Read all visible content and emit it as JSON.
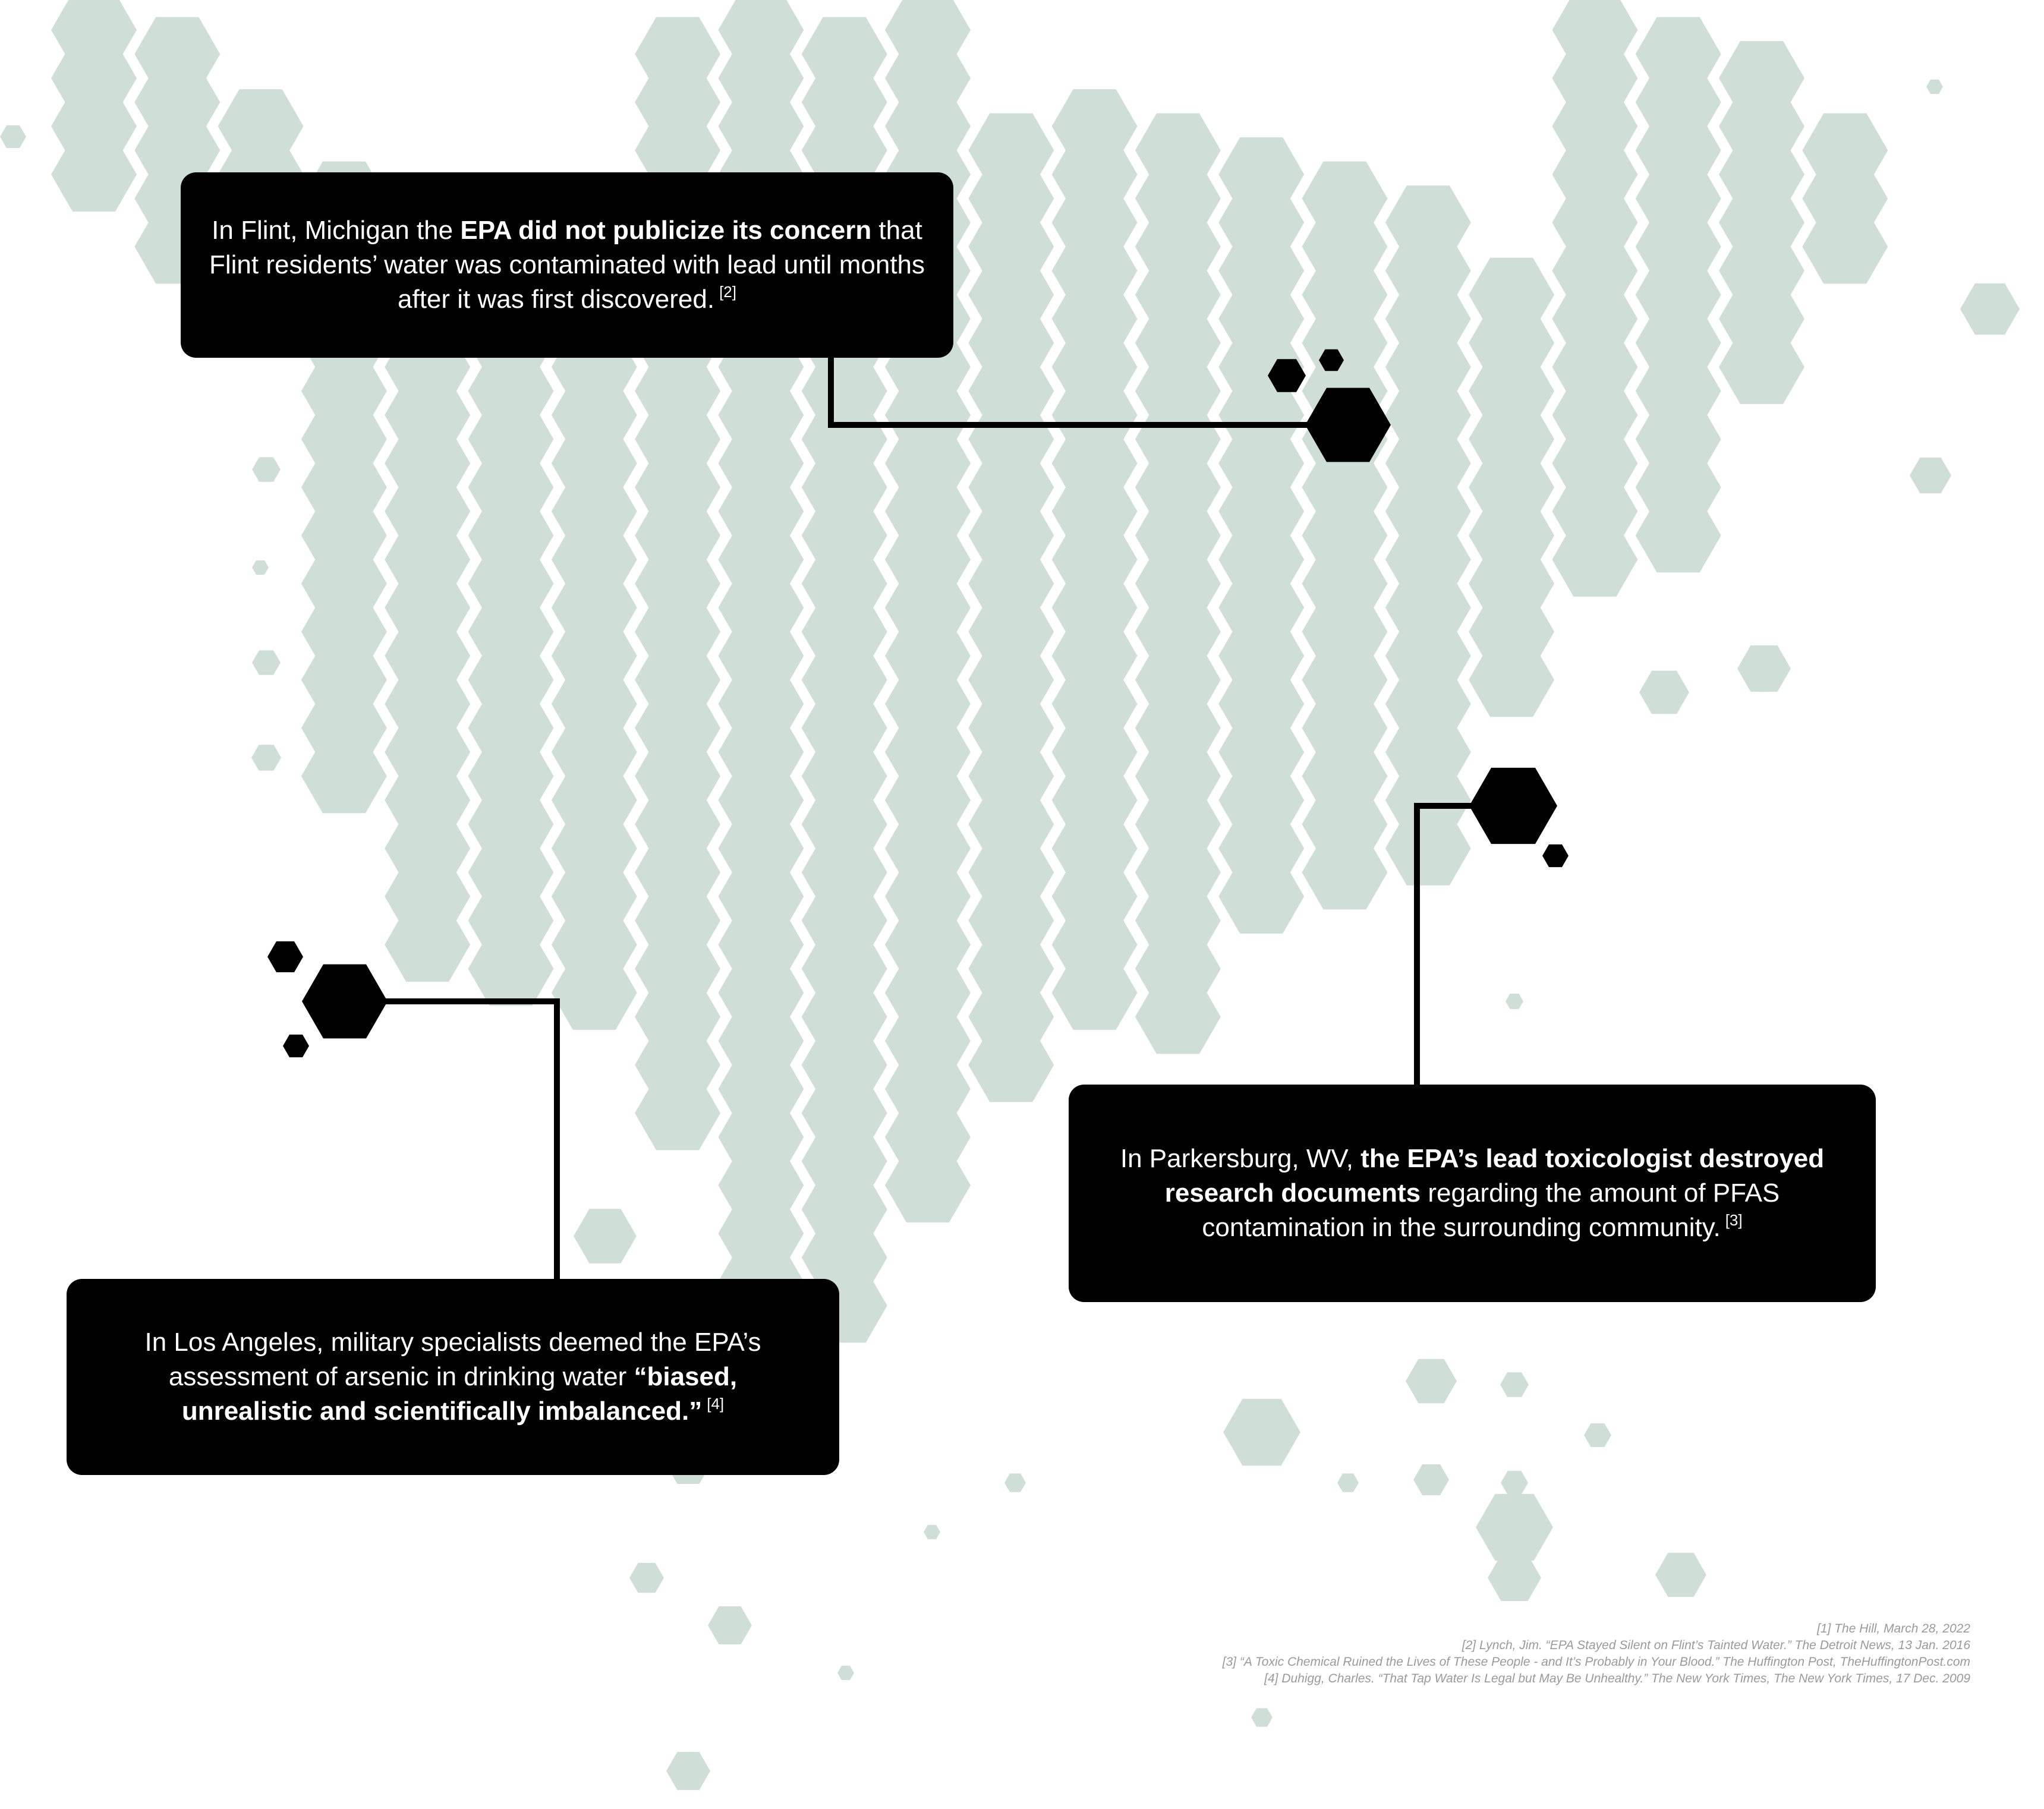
{
  "callouts": {
    "flint": {
      "pre": "In Flint, Michigan the ",
      "bold": "EPA did not publicize its concern",
      "post": " that Flint residents’ water was contaminated with lead until months after it was first discovered.",
      "ref": "[2]"
    },
    "parkersburg": {
      "pre": "In Parkersburg, WV, ",
      "bold": "the EPA’s lead toxicologist destroyed research documents",
      "post": " regarding the amount of PFAS contamination in the surrounding community.",
      "ref": "[3]"
    },
    "los_angeles": {
      "pre": "In Los Angeles, military specialists deemed the EPA’s assessment of arsenic in drinking water ",
      "bold": "“biased, unrealistic and scientifically imbalanced.”",
      "ref": "[4]"
    }
  },
  "references": [
    "[1] The Hill, March 28, 2022",
    "[2] Lynch, Jim. “EPA Stayed Silent on Flint’s Tainted Water.” The Detroit News, 13 Jan. 2016",
    "[3] “A Toxic Chemical Ruined the Lives of These People - and It’s Probably in Your Blood.” The Huffington Post, TheHuffingtonPost.com",
    "[4] Duhigg, Charles. “That Tap Water Is Legal but May Be Unhealthy.” The New York Times, The New York Times, 17 Dec. 2009"
  ],
  "colors": {
    "hex_fill": "#cfdfd8",
    "callout_bg": "#000000",
    "callout_text": "#ffffff",
    "reference_text": "#9a9a9a"
  }
}
